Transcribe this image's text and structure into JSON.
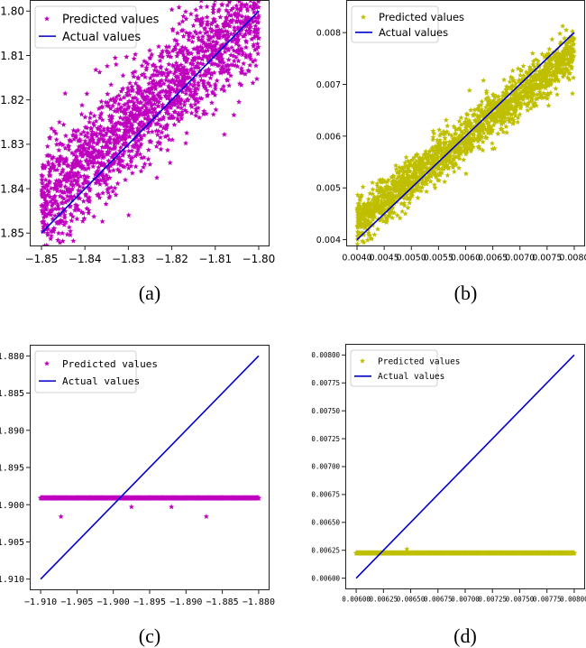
{
  "figure": {
    "description": "Four scatter plots comparing predicted values against actual values (identity line)."
  },
  "chart_data": [
    {
      "id": "a",
      "type": "scatter",
      "caption": "(a)",
      "title": "",
      "xlabel": "",
      "ylabel": "",
      "xlim": [
        -1.8527,
        -1.7975
      ],
      "ylim": [
        -1.853,
        -1.7975
      ],
      "xticks": [
        -1.85,
        -1.84,
        -1.83,
        -1.82,
        -1.81,
        -1.8
      ],
      "xtick_labels": [
        "−1.85",
        "−1.84",
        "−1.83",
        "−1.82",
        "−1.81",
        "−1.80"
      ],
      "yticks": [
        -1.8,
        -1.81,
        -1.82,
        -1.83,
        -1.84,
        -1.85
      ],
      "ytick_labels": [
        "−1.80",
        "−1.81",
        "−1.82",
        "−1.83",
        "−1.84",
        "−1.85"
      ],
      "grid": false,
      "legend": {
        "placement": "top-left",
        "entries": [
          "Predicted values",
          "Actual values"
        ]
      },
      "series": [
        {
          "name": "Predicted values",
          "kind": "scatter",
          "marker": "star",
          "color": "#bf00bf",
          "distribution": {
            "x_range": [
              -1.85,
              -1.8
            ],
            "slope": 0.86,
            "intercept_at_xmin": -1.843,
            "spread": 0.006,
            "count": 1800
          }
        },
        {
          "name": "Actual values",
          "kind": "line",
          "color": "#0000cc",
          "x": [
            -1.85,
            -1.8
          ],
          "y": [
            -1.85,
            -1.8
          ]
        }
      ]
    },
    {
      "id": "b",
      "type": "scatter",
      "caption": "(b)",
      "title": "",
      "xlabel": "",
      "ylabel": "",
      "xlim": [
        0.0038,
        0.0082
      ],
      "ylim": [
        0.00387,
        0.00863
      ],
      "xticks": [
        0.004,
        0.0045,
        0.005,
        0.0055,
        0.006,
        0.0065,
        0.007,
        0.0075,
        0.008
      ],
      "xtick_labels": [
        "0.0040",
        "0.0045",
        "0.0050",
        "0.0055",
        "0.0060",
        "0.0065",
        "0.0070",
        "0.0075",
        "0.0080"
      ],
      "yticks": [
        0.008,
        0.007,
        0.006,
        0.005,
        0.004
      ],
      "ytick_labels": [
        "0.008",
        "0.007",
        "0.006",
        "0.005",
        "0.004"
      ],
      "grid": false,
      "legend": {
        "placement": "top-left",
        "entries": [
          "Predicted values",
          "Actual values"
        ]
      },
      "series": [
        {
          "name": "Predicted values",
          "kind": "scatter",
          "marker": "star",
          "color": "#bfbf00",
          "distribution": {
            "x_range": [
              0.004,
              0.008
            ],
            "slope": 0.82,
            "intercept_at_xmin": 0.00435,
            "spread": 0.00022,
            "count": 1800
          }
        },
        {
          "name": "Actual values",
          "kind": "line",
          "color": "#0000cc",
          "x": [
            0.004,
            0.008
          ],
          "y": [
            0.004,
            0.008
          ]
        }
      ]
    },
    {
      "id": "c",
      "type": "scatter",
      "caption": "(c)",
      "title": "",
      "xlabel": "",
      "ylabel": "",
      "xlim": [
        -1.9115,
        -1.8785
      ],
      "ylim": [
        -1.9115,
        -1.8785
      ],
      "xticks": [
        -1.91,
        -1.905,
        -1.9,
        -1.895,
        -1.89,
        -1.885,
        -1.88
      ],
      "xtick_labels": [
        "−1.910",
        "−1.905",
        "−1.900",
        "−1.895",
        "−1.890",
        "−1.885",
        "−1.880"
      ],
      "yticks": [
        -1.88,
        -1.885,
        -1.89,
        -1.895,
        -1.9,
        -1.905,
        -1.91
      ],
      "ytick_labels": [
        "−1.880",
        "−1.885",
        "−1.890",
        "−1.895",
        "−1.900",
        "−1.905",
        "−1.910"
      ],
      "grid": false,
      "legend": {
        "placement": "top-left",
        "entries": [
          "Predicted values",
          "Actual values"
        ]
      },
      "series": [
        {
          "name": "Predicted values",
          "kind": "scatter",
          "marker": "star",
          "color": "#bf00bf",
          "band": {
            "x_range": [
              -1.91,
              -1.88
            ],
            "y": -1.8991
          },
          "outliers": [
            {
              "x": -1.9072,
              "y": -1.9016
            },
            {
              "x": -1.8975,
              "y": -1.9003
            },
            {
              "x": -1.892,
              "y": -1.9003
            },
            {
              "x": -1.8872,
              "y": -1.9016
            }
          ]
        },
        {
          "name": "Actual values",
          "kind": "line",
          "color": "#0000cc",
          "x": [
            -1.91,
            -1.88
          ],
          "y": [
            -1.91,
            -1.88
          ]
        }
      ]
    },
    {
      "id": "d",
      "type": "scatter",
      "caption": "(d)",
      "title": "",
      "xlabel": "",
      "ylabel": "",
      "xlim": [
        0.0059,
        0.0081
      ],
      "ylim": [
        0.0059,
        0.0081
      ],
      "xticks": [
        0.006,
        0.00625,
        0.0065,
        0.00675,
        0.007,
        0.00725,
        0.0075,
        0.00775,
        0.008
      ],
      "xtick_labels": [
        "0.00600",
        "0.00625",
        "0.00650",
        "0.00675",
        "0.00700",
        "0.00725",
        "0.00750",
        "0.00775",
        "0.00800"
      ],
      "yticks": [
        0.008,
        0.00775,
        0.0075,
        0.00725,
        0.007,
        0.00675,
        0.0065,
        0.00625,
        0.006
      ],
      "ytick_labels": [
        "0.00800",
        "0.00775",
        "0.00750",
        "0.00725",
        "0.00700",
        "0.00675",
        "0.00650",
        "0.00625",
        "0.00600"
      ],
      "grid": false,
      "legend": {
        "placement": "top-left",
        "entries": [
          "Predicted values",
          "Actual values"
        ]
      },
      "series": [
        {
          "name": "Predicted values",
          "kind": "scatter",
          "marker": "star",
          "color": "#bfbf00",
          "band": {
            "x_range": [
              0.006,
              0.008
            ],
            "y": 0.006225
          },
          "outliers": [
            {
              "x": 0.006465,
              "y": 0.00626
            }
          ]
        },
        {
          "name": "Actual values",
          "kind": "line",
          "color": "#0000cc",
          "x": [
            0.006,
            0.008
          ],
          "y": [
            0.006,
            0.008
          ]
        }
      ]
    }
  ]
}
